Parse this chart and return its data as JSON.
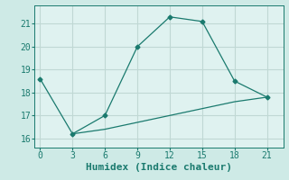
{
  "title": "",
  "xlabel": "Humidex (Indice chaleur)",
  "ylabel": "",
  "background_color": "#ceeae6",
  "plot_bg_color": "#dff2f0",
  "line_color": "#1a7a6e",
  "grid_color": "#c0d8d4",
  "x_ticks": [
    0,
    3,
    6,
    9,
    12,
    15,
    18,
    21
  ],
  "y_ticks": [
    16,
    17,
    18,
    19,
    20,
    21
  ],
  "ylim": [
    15.6,
    21.8
  ],
  "xlim": [
    -0.5,
    22.5
  ],
  "series1_x": [
    0,
    3,
    6,
    9,
    12,
    15,
    18,
    21
  ],
  "series1_y": [
    18.6,
    16.2,
    17.0,
    20.0,
    21.3,
    21.1,
    18.5,
    17.8
  ],
  "series2_x": [
    3,
    6,
    9,
    12,
    15,
    18,
    21
  ],
  "series2_y": [
    16.2,
    16.4,
    16.7,
    17.0,
    17.3,
    17.6,
    17.8
  ],
  "font_family": "monospace",
  "xlabel_fontsize": 8,
  "tick_fontsize": 7
}
